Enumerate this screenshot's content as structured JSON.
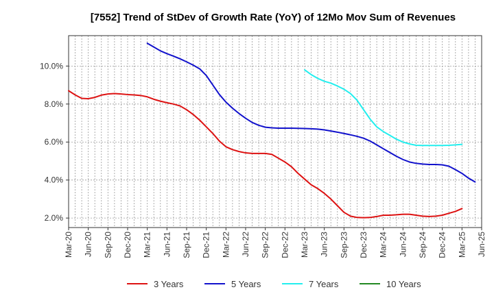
{
  "chart_data": {
    "type": "line",
    "title": "[7552]  Trend of StDev of Growth Rate (YoY) of 12Mo Mov Sum of Revenues",
    "xlabel": "",
    "ylabel": "",
    "x_ticks": [
      "Mar-20",
      "Jun-20",
      "Sep-20",
      "Dec-20",
      "Mar-21",
      "Jun-21",
      "Sep-21",
      "Dec-21",
      "Mar-22",
      "Jun-22",
      "Sep-22",
      "Dec-22",
      "Mar-23",
      "Jun-23",
      "Sep-23",
      "Dec-23",
      "Mar-24",
      "Jun-24",
      "Sep-24",
      "Dec-24",
      "Mar-25",
      "Jun-25"
    ],
    "y_ticks": [
      "2.0%",
      "4.0%",
      "6.0%",
      "8.0%",
      "10.0%"
    ],
    "y_tick_values": [
      2,
      4,
      6,
      8,
      10
    ],
    "ylim": [
      1.5,
      11.6
    ],
    "grid": true,
    "legend_position": "bottom",
    "series": [
      {
        "name": "3 Years",
        "color": "#dd1111",
        "start_index": 0,
        "values": [
          8.7,
          8.48,
          8.3,
          8.28,
          8.35,
          8.47,
          8.53,
          8.55,
          8.53,
          8.5,
          8.48,
          8.45,
          8.38,
          8.25,
          8.15,
          8.07,
          8.0,
          7.9,
          7.7,
          7.45,
          7.15,
          6.8,
          6.45,
          6.05,
          5.75,
          5.6,
          5.5,
          5.43,
          5.4,
          5.4,
          5.4,
          5.35,
          5.15,
          4.95,
          4.7,
          4.35,
          4.05,
          3.75,
          3.55,
          3.3,
          3.0,
          2.65,
          2.3,
          2.1,
          2.03,
          2.02,
          2.03,
          2.08,
          2.15,
          2.15,
          2.17,
          2.2,
          2.2,
          2.15,
          2.1,
          2.08,
          2.1,
          2.15,
          2.25,
          2.35,
          2.5
        ]
      },
      {
        "name": "5 Years",
        "color": "#1111cc",
        "start_index": 12,
        "values": [
          11.2,
          11.0,
          10.8,
          10.65,
          10.52,
          10.38,
          10.22,
          10.05,
          9.85,
          9.5,
          9.0,
          8.5,
          8.1,
          7.78,
          7.5,
          7.25,
          7.03,
          6.88,
          6.78,
          6.75,
          6.73,
          6.73,
          6.73,
          6.72,
          6.71,
          6.7,
          6.68,
          6.64,
          6.58,
          6.52,
          6.45,
          6.38,
          6.3,
          6.2,
          6.05,
          5.85,
          5.65,
          5.45,
          5.25,
          5.08,
          4.95,
          4.88,
          4.84,
          4.82,
          4.82,
          4.8,
          4.73,
          4.55,
          4.35,
          4.1,
          3.9
        ]
      },
      {
        "name": "7 Years",
        "color": "#22eeee",
        "start_index": 36,
        "values": [
          9.8,
          9.55,
          9.35,
          9.2,
          9.1,
          8.95,
          8.78,
          8.55,
          8.2,
          7.7,
          7.2,
          6.8,
          6.55,
          6.35,
          6.15,
          6.0,
          5.9,
          5.83,
          5.82,
          5.82,
          5.82,
          5.82,
          5.83,
          5.85,
          5.88
        ]
      },
      {
        "name": "10 Years",
        "color": "#228822",
        "start_index": 0,
        "values": []
      }
    ]
  }
}
